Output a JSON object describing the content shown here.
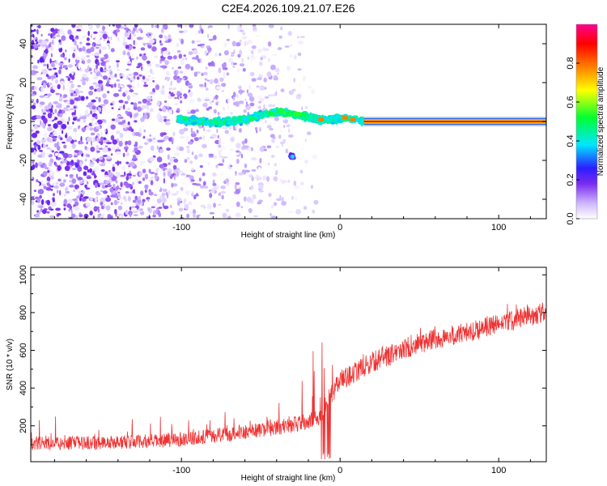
{
  "title": "C2E4.2026.109.21.07.E26",
  "chart_data": [
    {
      "type": "heatmap",
      "name": "spectrogram",
      "xlabel": "Height of straight line (km)",
      "ylabel": "Frequency (Hz)",
      "xlim": [
        -195,
        130
      ],
      "ylim": [
        -50,
        50
      ],
      "xticks": [
        -100,
        0,
        100
      ],
      "xtick_labels": [
        "-100",
        "0",
        "100"
      ],
      "yticks": [
        -40,
        -20,
        0,
        20,
        40
      ],
      "ytick_labels": [
        "-40",
        "-20",
        "0",
        "20",
        "40"
      ],
      "colorbar": {
        "label": "Normalized spectral amplitude",
        "range": [
          0,
          1
        ],
        "ticks": [
          0,
          0.2,
          0.4,
          0.6,
          0.8
        ],
        "tick_labels": [
          "0.0",
          "0.2",
          "0.4",
          "0.6",
          "0.8"
        ]
      },
      "features": {
        "noise_region_x": [
          -195,
          -15
        ],
        "tone_frequency_hz": 0,
        "tone_start_x": 15,
        "tone_amplitude": 0.9,
        "transition_path": [
          {
            "x": -100,
            "y": 1
          },
          {
            "x": -80,
            "y": -1
          },
          {
            "x": -60,
            "y": 1
          },
          {
            "x": -40,
            "y": 5
          },
          {
            "x": -25,
            "y": 3
          },
          {
            "x": -12,
            "y": 1
          },
          {
            "x": 0,
            "y": 1
          },
          {
            "x": 5,
            "y": 2
          },
          {
            "x": 15,
            "y": 0
          }
        ],
        "side_blob": {
          "x": -30,
          "y": -18
        }
      }
    },
    {
      "type": "line",
      "name": "snr",
      "xlabel": "Height of straight line (km)",
      "ylabel": "SNR (10 * v/v)",
      "xlim": [
        -195,
        130
      ],
      "ylim": [
        10,
        1040
      ],
      "xticks": [
        -100,
        0,
        100
      ],
      "xtick_labels": [
        "-100",
        "0",
        "100"
      ],
      "yticks": [
        200,
        400,
        600,
        800,
        1000
      ],
      "ytick_labels": [
        "200",
        "400",
        "600",
        "800",
        "1000"
      ],
      "color": "#ee3333",
      "trend": [
        {
          "x": -195,
          "y": 95
        },
        {
          "x": -150,
          "y": 100
        },
        {
          "x": -110,
          "y": 110
        },
        {
          "x": -80,
          "y": 135
        },
        {
          "x": -50,
          "y": 165
        },
        {
          "x": -25,
          "y": 200
        },
        {
          "x": -12,
          "y": 240
        },
        {
          "x": -8,
          "y": 320
        },
        {
          "x": 0,
          "y": 420
        },
        {
          "x": 20,
          "y": 520
        },
        {
          "x": 50,
          "y": 620
        },
        {
          "x": 90,
          "y": 700
        },
        {
          "x": 130,
          "y": 790
        }
      ],
      "noise_amplitude": 110
    }
  ]
}
